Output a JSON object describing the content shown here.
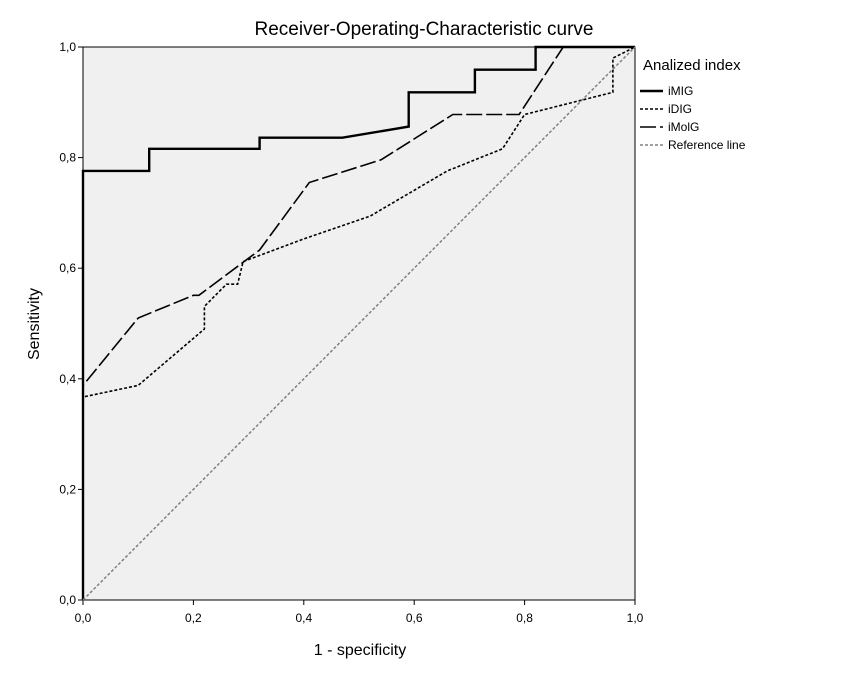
{
  "chart_data": {
    "type": "line",
    "title": "Receiver-Operating-Characteristic curve",
    "xlabel": "1 - specificity",
    "ylabel": "Sensitivity",
    "xlim": [
      0,
      1
    ],
    "ylim": [
      0,
      1
    ],
    "x_ticks": [
      "0,0",
      "0,2",
      "0,4",
      "0,6",
      "0,8",
      "1,0"
    ],
    "y_ticks": [
      "0,0",
      "0,2",
      "0,4",
      "0,6",
      "0,8",
      "1,0"
    ],
    "grid": false,
    "legend": {
      "title": "Analized index",
      "position": "right"
    },
    "series": [
      {
        "name": "iMIG",
        "color": "#000000",
        "style": "solid",
        "points": [
          [
            0,
            0
          ],
          [
            0,
            0.776
          ],
          [
            0.12,
            0.776
          ],
          [
            0.12,
            0.816
          ],
          [
            0.32,
            0.816
          ],
          [
            0.32,
            0.836
          ],
          [
            0.47,
            0.836
          ],
          [
            0.59,
            0.856
          ],
          [
            0.59,
            0.918
          ],
          [
            0.71,
            0.918
          ],
          [
            0.71,
            0.959
          ],
          [
            0.82,
            0.959
          ],
          [
            0.82,
            1.0
          ],
          [
            1.0,
            1.0
          ]
        ]
      },
      {
        "name": "iDIG",
        "color": "#000000",
        "style": "dotted",
        "points": [
          [
            0,
            0
          ],
          [
            0,
            0.367
          ],
          [
            0.1,
            0.388
          ],
          [
            0.22,
            0.49
          ],
          [
            0.22,
            0.531
          ],
          [
            0.26,
            0.571
          ],
          [
            0.28,
            0.571
          ],
          [
            0.29,
            0.612
          ],
          [
            0.4,
            0.653
          ],
          [
            0.52,
            0.694
          ],
          [
            0.66,
            0.776
          ],
          [
            0.76,
            0.816
          ],
          [
            0.8,
            0.878
          ],
          [
            0.96,
            0.918
          ],
          [
            0.96,
            0.98
          ],
          [
            1.0,
            1.0
          ]
        ]
      },
      {
        "name": "iMolG",
        "color": "#000000",
        "style": "dashed",
        "points": [
          [
            0,
            0
          ],
          [
            0,
            0.388
          ],
          [
            0.1,
            0.51
          ],
          [
            0.2,
            0.551
          ],
          [
            0.21,
            0.551
          ],
          [
            0.32,
            0.633
          ],
          [
            0.41,
            0.755
          ],
          [
            0.54,
            0.796
          ],
          [
            0.67,
            0.878
          ],
          [
            0.79,
            0.878
          ],
          [
            0.87,
            1.0
          ],
          [
            1.0,
            1.0
          ]
        ]
      },
      {
        "name": "Reference line",
        "color": "#808080",
        "style": "dotted",
        "points": [
          [
            0,
            0
          ],
          [
            1,
            1
          ]
        ]
      }
    ]
  }
}
